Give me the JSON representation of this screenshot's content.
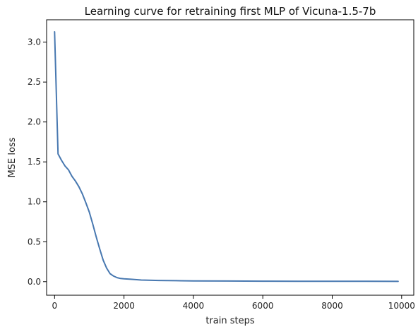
{
  "chart_data": {
    "type": "line",
    "title": "Learning curve for retraining first MLP of Vicuna-1.5-7b",
    "xlabel": "train steps",
    "ylabel": "MSE loss",
    "xlim": [
      -230,
      10350
    ],
    "ylim": [
      -0.17,
      3.28
    ],
    "xticks": [
      0,
      2000,
      4000,
      6000,
      8000,
      10000
    ],
    "xtick_labels": [
      "0",
      "2000",
      "4000",
      "6000",
      "8000",
      "10000"
    ],
    "yticks": [
      0.0,
      0.5,
      1.0,
      1.5,
      2.0,
      2.5,
      3.0
    ],
    "ytick_labels": [
      "0.0",
      "0.5",
      "1.0",
      "1.5",
      "2.0",
      "2.5",
      "3.0"
    ],
    "grid": false,
    "series": [
      {
        "color": "#4878b0",
        "x": [
          0,
          100,
          200,
          300,
          400,
          500,
          600,
          700,
          800,
          900,
          1000,
          1100,
          1200,
          1300,
          1400,
          1500,
          1600,
          1700,
          1800,
          1900,
          2000,
          2200,
          2500,
          3000,
          3500,
          4000,
          5000,
          6000,
          7000,
          8000,
          9000,
          9900
        ],
        "y": [
          3.13,
          1.6,
          1.52,
          1.45,
          1.4,
          1.32,
          1.26,
          1.19,
          1.1,
          0.99,
          0.87,
          0.72,
          0.56,
          0.41,
          0.27,
          0.17,
          0.1,
          0.07,
          0.05,
          0.04,
          0.035,
          0.03,
          0.02,
          0.015,
          0.012,
          0.01,
          0.008,
          0.006,
          0.005,
          0.004,
          0.004,
          0.003
        ]
      }
    ]
  }
}
